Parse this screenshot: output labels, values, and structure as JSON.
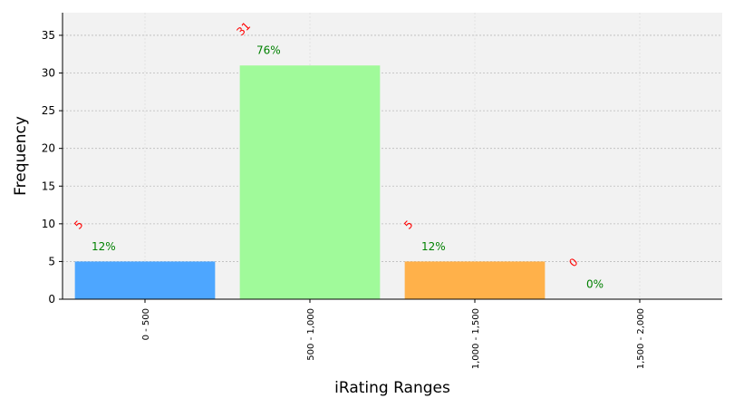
{
  "chart_data": {
    "type": "bar",
    "title": "",
    "xlabel": "iRating Ranges",
    "ylabel": "Frequency",
    "categories": [
      "0 - 500",
      "500 - 1,000",
      "1,000 - 1,500",
      "1,500 - 2,000"
    ],
    "values": [
      5,
      31,
      5,
      0
    ],
    "count_labels": [
      "5",
      "31",
      "5",
      "0"
    ],
    "percent_labels": [
      "12%",
      "76%",
      "12%",
      "0%"
    ],
    "bar_colors": [
      "#4da6ff",
      "#a0fa9a",
      "#ffb14a",
      "#ff6b6b"
    ],
    "count_label_color": "#ff0000",
    "percent_label_color": "#008000",
    "ylim": [
      0,
      38
    ],
    "yticks": [
      0,
      5,
      10,
      15,
      20,
      25,
      30,
      35
    ],
    "grid": true,
    "background": "#f2f2f2"
  }
}
